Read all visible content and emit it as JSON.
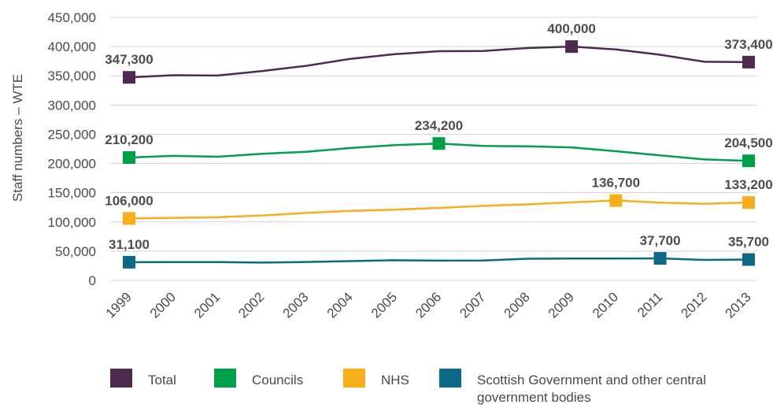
{
  "chart_data": {
    "type": "line",
    "ylabel": "Staff numbers – WTE",
    "xlabel": "",
    "ylim": [
      0,
      450000
    ],
    "yticks": [
      0,
      50000,
      100000,
      150000,
      200000,
      250000,
      300000,
      350000,
      400000,
      450000
    ],
    "ytick_labels": [
      "0",
      "50,000",
      "100,000",
      "150,000",
      "200,000",
      "250,000",
      "300,000",
      "350,000",
      "400,000",
      "450,000"
    ],
    "grid": "horizontal",
    "legend_position": "bottom",
    "x": [
      "1999",
      "2000",
      "2001",
      "2002",
      "2003",
      "2004",
      "2005",
      "2006",
      "2007",
      "2008",
      "2009",
      "2010",
      "2011",
      "2012",
      "2013"
    ],
    "series": [
      {
        "name": "Total",
        "color": "#4e2a4f",
        "values": [
          347300,
          351000,
          350500,
          358000,
          367000,
          379000,
          387000,
          392000,
          392500,
          397500,
          400000,
          395000,
          386000,
          374000,
          373400
        ],
        "markers": [
          {
            "x": "1999",
            "y": 347300,
            "label": "347,300"
          },
          {
            "x": "2009",
            "y": 400000,
            "label": "400,000"
          },
          {
            "x": "2013",
            "y": 373400,
            "label": "373,400"
          }
        ]
      },
      {
        "name": "Councils",
        "color": "#00a04b",
        "values": [
          210200,
          213000,
          211500,
          216500,
          220000,
          226500,
          231500,
          234200,
          230000,
          229500,
          227500,
          221000,
          214000,
          207000,
          204500
        ],
        "markers": [
          {
            "x": "1999",
            "y": 210200,
            "label": "210,200"
          },
          {
            "x": "2006",
            "y": 234200,
            "label": "234,200"
          },
          {
            "x": "2013",
            "y": 204500,
            "label": "204,500"
          }
        ]
      },
      {
        "name": "NHS",
        "color": "#f6ae1d",
        "values": [
          106000,
          107000,
          108000,
          111000,
          115500,
          119000,
          121000,
          124000,
          127500,
          130000,
          133500,
          136700,
          133000,
          131000,
          133200
        ],
        "markers": [
          {
            "x": "1999",
            "y": 106000,
            "label": "106,000"
          },
          {
            "x": "2010",
            "y": 136700,
            "label": "136,700"
          },
          {
            "x": "2013",
            "y": 133200,
            "label": "133,200"
          }
        ]
      },
      {
        "name": "Scottish Government and other central government bodies",
        "color": "#0d6986",
        "values": [
          31100,
          31200,
          31300,
          30500,
          31500,
          33000,
          34500,
          33800,
          34000,
          37000,
          37300,
          37500,
          37700,
          35000,
          35700
        ],
        "markers": [
          {
            "x": "1999",
            "y": 31100,
            "label": "31,100"
          },
          {
            "x": "2011",
            "y": 37700,
            "label": "37,700"
          },
          {
            "x": "2013",
            "y": 35700,
            "label": "35,700"
          }
        ]
      }
    ]
  },
  "legend": {
    "items": [
      {
        "label": "Total",
        "color": "#4e2a4f"
      },
      {
        "label": "Councils",
        "color": "#00a04b"
      },
      {
        "label": "NHS",
        "color": "#f6ae1d"
      },
      {
        "label": "Scottish Government and other central government bodies",
        "color": "#0d6986"
      }
    ]
  }
}
